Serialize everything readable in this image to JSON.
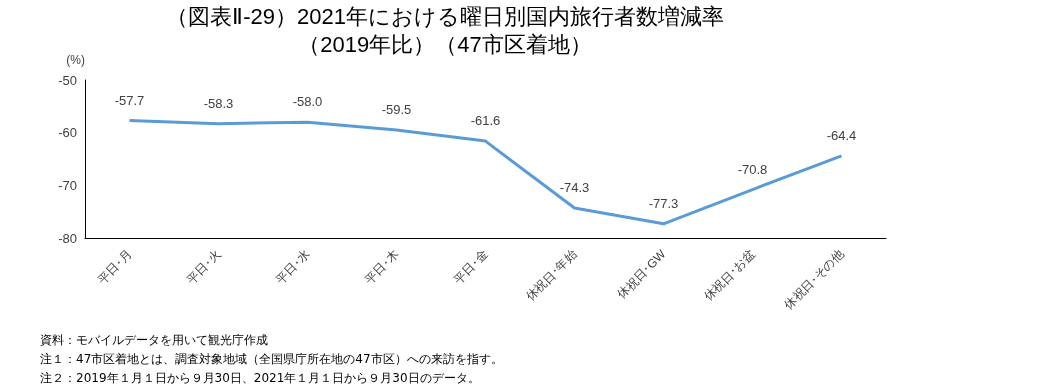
{
  "chart_data": {
    "type": "line",
    "title": "（図表Ⅱ-29）2021年における曜日別国内旅行者数増減率",
    "subtitle": "（2019年比）（47市区着地）",
    "ylabel": "(%)",
    "categories": [
      "平日･月",
      "平日･火",
      "平日･水",
      "平日･木",
      "平日･金",
      "休祝日･年始",
      "休祝日･GW",
      "休祝日･お盆",
      "休祝日･その他"
    ],
    "series": [
      {
        "color": "#5b9bd5",
        "values": [
          -57.7,
          -58.3,
          -58.0,
          -59.5,
          -61.6,
          -74.3,
          -77.3,
          -70.8,
          -64.4
        ]
      }
    ],
    "ylim": [
      -80,
      -50
    ],
    "yticks": [
      -50,
      -60,
      -70,
      -80
    ],
    "grid": false,
    "marker": "none",
    "value_labels": [
      "-57.7",
      "-58.3",
      "-58.0",
      "-59.5",
      "-61.6",
      "-74.3",
      "-77.3",
      "-70.8",
      "-64.4"
    ],
    "annotations": [
      "資料：モバイルデータを用いて観光庁作成",
      "注１：47市区着地とは、調査対象地域（全国県庁所在地の47市区）への来訪を指す。",
      "注２：2019年１月１日から９月30日、2021年１月１日から９月30日のデータ。"
    ]
  }
}
